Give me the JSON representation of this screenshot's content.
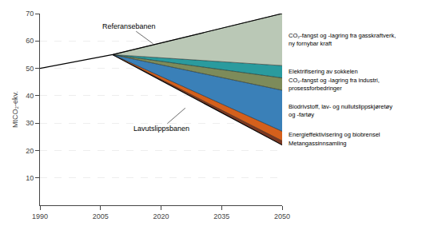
{
  "chart_data": {
    "type": "area",
    "ylabel": "MtCO₂-ekv.",
    "xlim": [
      1990,
      2050
    ],
    "ylim": [
      0,
      70
    ],
    "xticks": [
      1990,
      2005,
      2020,
      2035,
      2050
    ],
    "yticks": [
      10,
      20,
      30,
      40,
      50,
      60,
      70
    ],
    "grid": true,
    "series": [
      {
        "type": "line",
        "color": "#000000",
        "x": [
          2008,
          2050
        ],
        "values": [
          55.0,
          22.0
        ]
      },
      {
        "type": "area",
        "name": "Metangassinnsamling",
        "color": "#7B3822",
        "x": [
          2008,
          2050
        ],
        "values": [
          55.0,
          23.5
        ]
      },
      {
        "type": "area",
        "name": "Energieffektivisering og biobrensel",
        "color": "#D4601C",
        "x": [
          2008,
          2050
        ],
        "values": [
          55.0,
          27.0
        ]
      },
      {
        "type": "area",
        "name": "Biodrivstoff, lav- og nullutslippskjøretøy\nog -fartøy",
        "color": "#3A80B8",
        "x": [
          2008,
          2050
        ],
        "values": [
          55.0,
          42.0
        ]
      },
      {
        "type": "area",
        "name": "CO₂-fangst og -lagring fra industri,\nprosessforbedringer",
        "color": "#7D8B5A",
        "x": [
          2008,
          2050
        ],
        "values": [
          55.0,
          46.5
        ]
      },
      {
        "type": "area",
        "name": "Elektrifisering av sokkelen",
        "color": "#2A9B9E",
        "x": [
          2008,
          2050
        ],
        "values": [
          55.0,
          51.0
        ]
      },
      {
        "type": "area",
        "name": "CO₂-fangst og -lagring fra gasskraftverk,\nny fornybar kraft",
        "color": "#BAC8B6",
        "x": [
          2008,
          2050
        ],
        "values": [
          55.0,
          70.0
        ]
      },
      {
        "type": "line",
        "color": "#000000",
        "x": [
          1990,
          2008,
          2050
        ],
        "values": [
          50.0,
          55.0,
          70.0
        ]
      }
    ],
    "annotations": [
      {
        "text": "Referansebanen",
        "x": 2018,
        "y": 59
      },
      {
        "text": "Lavutslippsbanen",
        "x": 2026,
        "y": 35.5
      }
    ]
  }
}
